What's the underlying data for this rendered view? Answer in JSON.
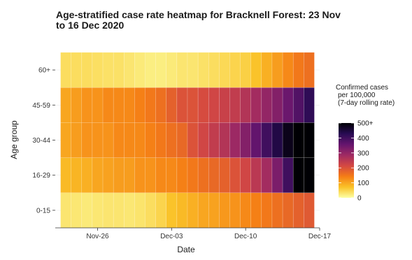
{
  "chart_data": {
    "type": "heatmap",
    "title": "Age-stratified case rate heatmap for Bracknell Forest: 23 Nov to 16 Dec 2020",
    "xlabel": "Date",
    "ylabel": "Age group",
    "x": [
      "2020-11-23",
      "2020-11-24",
      "2020-11-25",
      "2020-11-26",
      "2020-11-27",
      "2020-11-28",
      "2020-11-29",
      "2020-11-30",
      "2020-12-01",
      "2020-12-02",
      "2020-12-03",
      "2020-12-04",
      "2020-12-05",
      "2020-12-06",
      "2020-12-07",
      "2020-12-08",
      "2020-12-09",
      "2020-12-10",
      "2020-12-11",
      "2020-12-12",
      "2020-12-13",
      "2020-12-14",
      "2020-12-15",
      "2020-12-16"
    ],
    "x_ticks": [
      {
        "date": "2020-11-26",
        "label": "Nov-26"
      },
      {
        "date": "2020-12-03",
        "label": "Dec-03"
      },
      {
        "date": "2020-12-10",
        "label": "Dec-10"
      },
      {
        "date": "2020-12-17",
        "label": "Dec-17"
      }
    ],
    "xlim": [
      "2020-11-22",
      "2020-12-17"
    ],
    "y": [
      "0-15",
      "16-29",
      "30-44",
      "45-59",
      "60+"
    ],
    "z": [
      [
        30,
        28,
        25,
        28,
        30,
        30,
        28,
        32,
        40,
        50,
        70,
        80,
        90,
        100,
        105,
        115,
        120,
        130,
        140,
        150,
        160,
        170,
        180,
        190
      ],
      [
        80,
        85,
        90,
        100,
        105,
        110,
        110,
        120,
        120,
        130,
        130,
        140,
        150,
        160,
        170,
        180,
        200,
        220,
        250,
        280,
        330,
        400,
        500,
        520
      ],
      [
        100,
        110,
        120,
        120,
        120,
        130,
        130,
        130,
        140,
        150,
        160,
        170,
        200,
        220,
        240,
        260,
        290,
        320,
        360,
        400,
        440,
        480,
        520,
        540
      ],
      [
        100,
        110,
        120,
        120,
        130,
        130,
        130,
        140,
        150,
        160,
        180,
        200,
        200,
        210,
        220,
        230,
        240,
        260,
        280,
        300,
        320,
        350,
        380,
        420
      ],
      [
        40,
        40,
        40,
        38,
        35,
        35,
        30,
        25,
        20,
        20,
        25,
        30,
        30,
        35,
        40,
        45,
        50,
        55,
        70,
        90,
        110,
        130,
        150,
        160
      ]
    ],
    "legend": {
      "title": "Confirmed cases\nper 100,000\n(7-day rolling rate)",
      "ticks": [
        {
          "value": 0,
          "label": "0"
        },
        {
          "value": 100,
          "label": "100"
        },
        {
          "value": 200,
          "label": "200"
        },
        {
          "value": 300,
          "label": "300"
        },
        {
          "value": 400,
          "label": "400"
        },
        {
          "value": 500,
          "label": "500+"
        }
      ],
      "range": [
        0,
        500
      ],
      "placement": "right"
    },
    "colorscale": [
      "#fcffa4",
      "#fac228",
      "#f57d15",
      "#d44842",
      "#9f2a63",
      "#65156e",
      "#280b53",
      "#000004"
    ],
    "grid": true
  }
}
